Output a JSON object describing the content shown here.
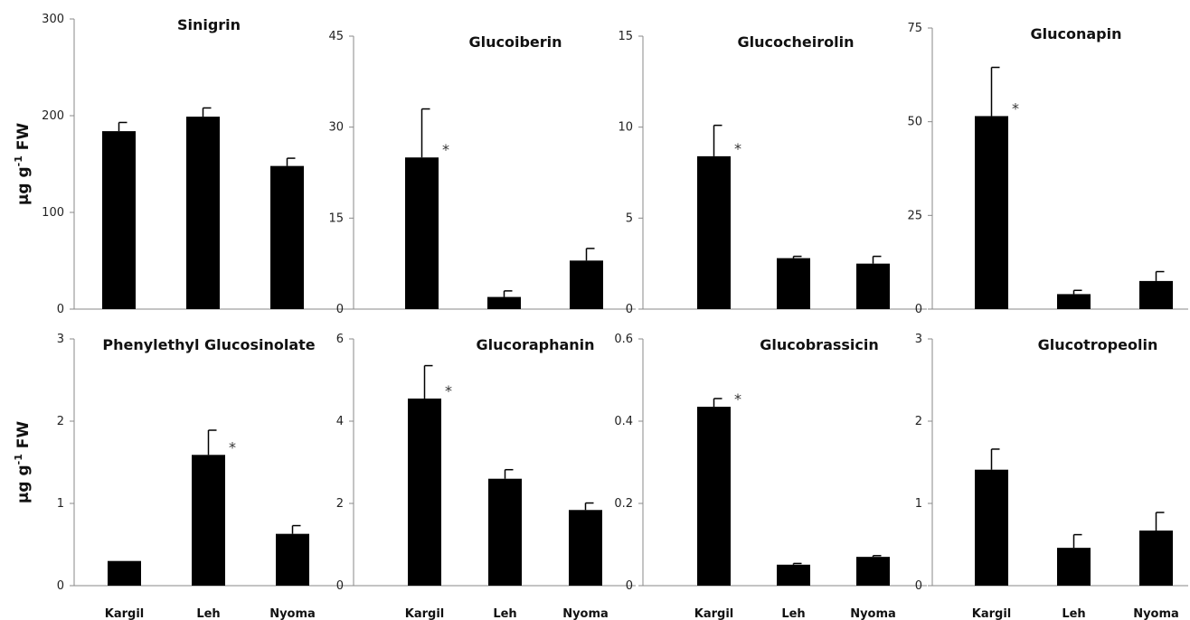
{
  "figure": {
    "ylabel_main": "μg g",
    "ylabel_sup": "-1",
    "ylabel_rest": " FW"
  },
  "chart_data": [
    {
      "type": "bar",
      "title": "Sinigrin",
      "categories": [
        "Kargil",
        "Leh",
        "Nyoma"
      ],
      "values": [
        184,
        199,
        148
      ],
      "errors": [
        9,
        9,
        8
      ],
      "significance": [
        "",
        "",
        ""
      ],
      "ylim": [
        0,
        300
      ],
      "yticks": [
        "0",
        "100",
        "200",
        "300"
      ],
      "show_ylabel": true,
      "show_xlabels": false
    },
    {
      "type": "bar",
      "title": "Glucoiberin",
      "categories": [
        "Kargil",
        "Leh",
        "Nyoma"
      ],
      "values": [
        25,
        2,
        8
      ],
      "errors": [
        8,
        1,
        2
      ],
      "significance": [
        "*",
        "",
        ""
      ],
      "ylim": [
        0,
        45
      ],
      "yticks": [
        "0",
        "15",
        "30",
        "45"
      ],
      "show_ylabel": false,
      "show_xlabels": false
    },
    {
      "type": "bar",
      "title": "Glucocheirolin",
      "categories": [
        "Kargil",
        "Leh",
        "Nyoma"
      ],
      "values": [
        8.4,
        2.8,
        2.5
      ],
      "errors": [
        1.7,
        0.1,
        0.4
      ],
      "significance": [
        "*",
        "",
        ""
      ],
      "ylim": [
        0,
        15
      ],
      "yticks": [
        "0",
        "5",
        "10",
        "15"
      ],
      "show_ylabel": false,
      "show_xlabels": false
    },
    {
      "type": "bar",
      "title": "Gluconapin",
      "categories": [
        "Kargil",
        "Leh",
        "Nyoma"
      ],
      "values": [
        51.5,
        4,
        7.5
      ],
      "errors": [
        13,
        1,
        2.5
      ],
      "significance": [
        "*",
        "",
        ""
      ],
      "ylim": [
        0,
        75
      ],
      "yticks": [
        "0",
        "25",
        "50",
        "75"
      ],
      "show_ylabel": false,
      "show_xlabels": false
    },
    {
      "type": "bar",
      "title": "Phenylethyl Glucosinolate",
      "categories": [
        "Kargil",
        "Leh",
        "Nyoma"
      ],
      "values": [
        0.3,
        1.59,
        0.63
      ],
      "errors": [
        0,
        0.3,
        0.1
      ],
      "significance": [
        "",
        "*",
        ""
      ],
      "ylim": [
        0,
        3
      ],
      "yticks": [
        "0",
        "1",
        "2",
        "3"
      ],
      "show_ylabel": true,
      "show_xlabels": true
    },
    {
      "type": "bar",
      "title": "Glucoraphanin",
      "categories": [
        "Kargil",
        "Leh",
        "Nyoma"
      ],
      "values": [
        4.55,
        2.6,
        1.84
      ],
      "errors": [
        0.8,
        0.22,
        0.17
      ],
      "significance": [
        "*",
        "",
        ""
      ],
      "ylim": [
        0,
        6
      ],
      "yticks": [
        "0",
        "2",
        "4",
        "6"
      ],
      "show_ylabel": false,
      "show_xlabels": true
    },
    {
      "type": "bar",
      "title": "Glucobrassicin",
      "categories": [
        "Kargil",
        "Leh",
        "Nyoma"
      ],
      "values": [
        0.435,
        0.051,
        0.07
      ],
      "errors": [
        0.02,
        0.003,
        0.003
      ],
      "significance": [
        "*",
        "",
        ""
      ],
      "ylim": [
        0,
        0.6
      ],
      "yticks": [
        "0",
        "0.2",
        "0.4",
        "0.6"
      ],
      "show_ylabel": false,
      "show_xlabels": true
    },
    {
      "type": "bar",
      "title": "Glucotropeolin",
      "categories": [
        "Kargil",
        "Leh",
        "Nyoma"
      ],
      "values": [
        1.41,
        0.46,
        0.67
      ],
      "errors": [
        0.25,
        0.16,
        0.22
      ],
      "significance": [
        "",
        "",
        ""
      ],
      "ylim": [
        0,
        3
      ],
      "yticks": [
        "0",
        "1",
        "2",
        "3"
      ],
      "show_ylabel": false,
      "show_xlabels": true
    }
  ]
}
